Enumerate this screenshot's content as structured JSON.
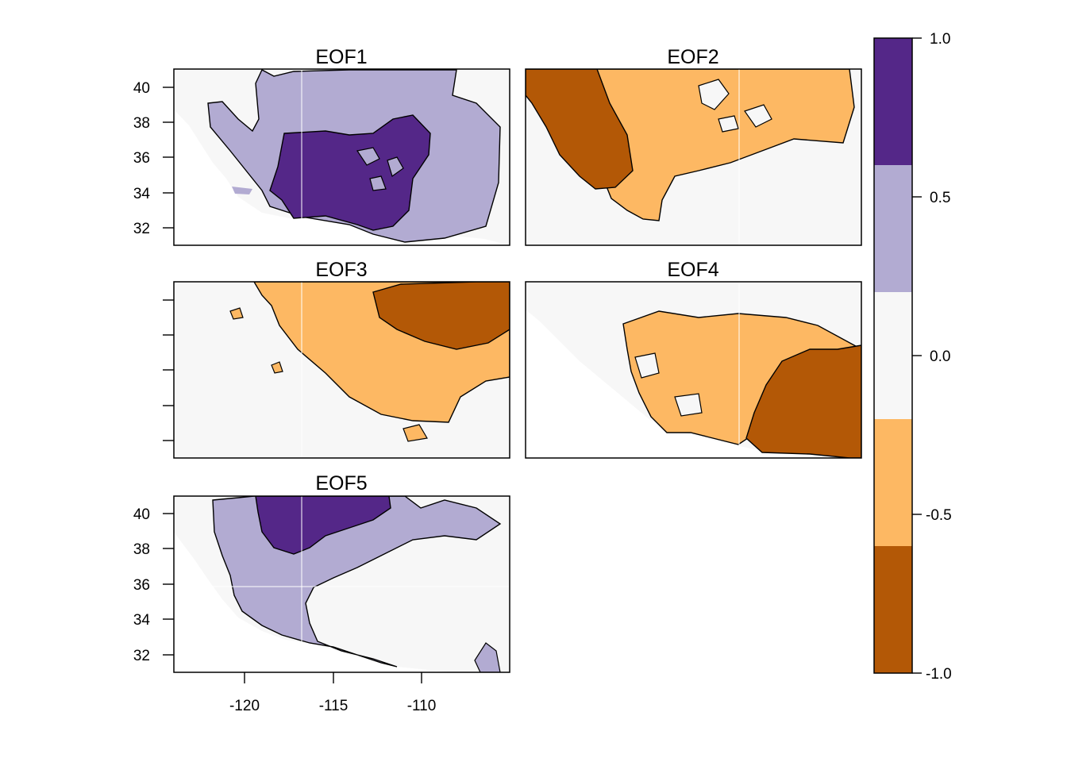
{
  "panels": [
    {
      "id": "eof1",
      "title": "EOF1"
    },
    {
      "id": "eof2",
      "title": "EOF2"
    },
    {
      "id": "eof3",
      "title": "EOF3"
    },
    {
      "id": "eof4",
      "title": "EOF4"
    },
    {
      "id": "eof5",
      "title": "EOF5"
    }
  ],
  "axes": {
    "y_ticks": [
      "40",
      "38",
      "36",
      "34",
      "32"
    ],
    "x_ticks": [
      "-120",
      "-115",
      "-110"
    ]
  },
  "colorbar": {
    "tick_labels": [
      "1.0",
      "0.5",
      "0.0",
      "-0.5",
      "-1.0"
    ],
    "classes": [
      {
        "range": "0.6 to 1.0",
        "color": "#542788"
      },
      {
        "range": "0.2 to 0.6",
        "color": "#b2abd2"
      },
      {
        "range": "-0.2 to 0.2",
        "color": "#f7f7f7"
      },
      {
        "range": "-0.6 to -0.2",
        "color": "#fdb863"
      },
      {
        "range": "-1.0 to -0.6",
        "color": "#b35806"
      }
    ]
  }
}
